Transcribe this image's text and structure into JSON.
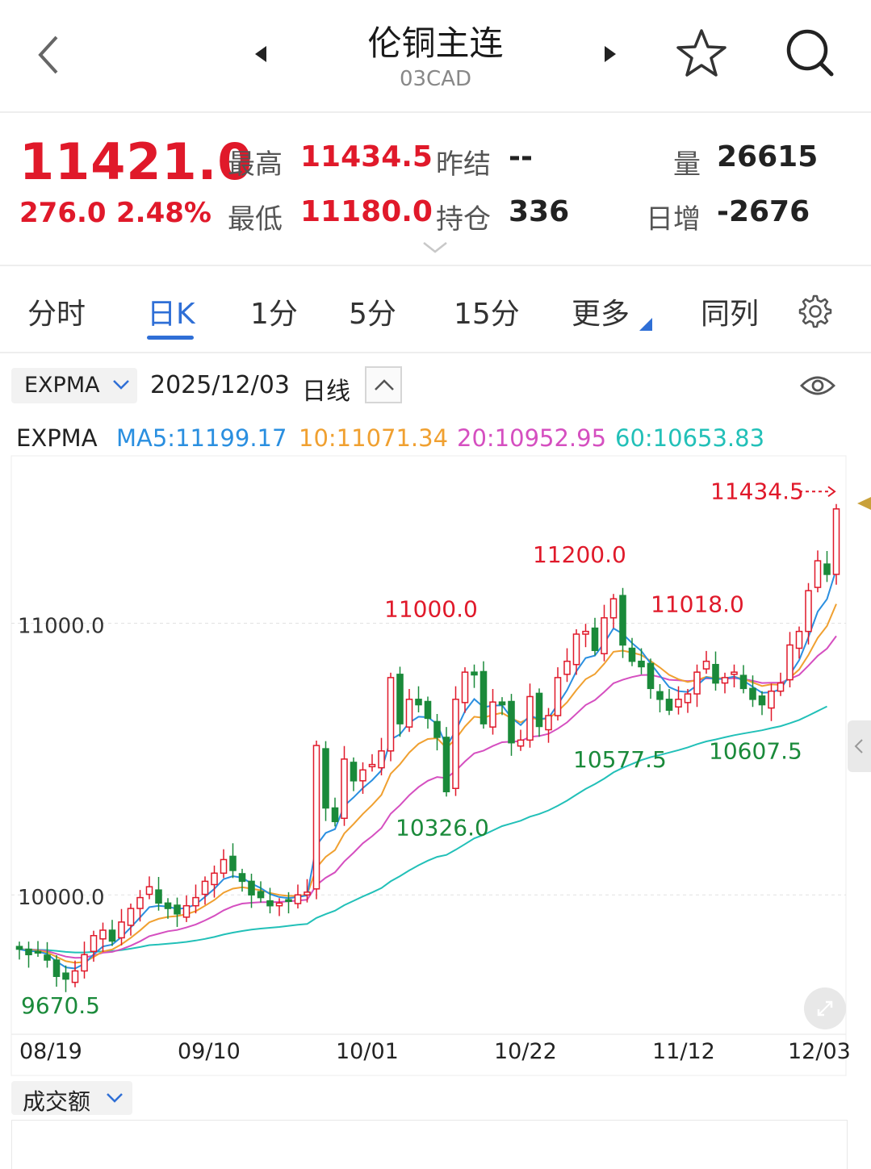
{
  "header": {
    "title": "伦铜主连",
    "code": "03CAD"
  },
  "quote": {
    "price": "11421.0",
    "change": "276.0",
    "change_pct": "2.48%",
    "high_label": "最高",
    "high": "11434.5",
    "low_label": "最低",
    "low": "11180.0",
    "prev_settle_label": "昨结",
    "prev_settle": "--",
    "open_interest_label": "持仓",
    "open_interest": "336",
    "volume_label": "量",
    "volume": "26615",
    "daily_change_label": "日增",
    "daily_change": "-2676"
  },
  "tabs": [
    {
      "label": "分时",
      "active": false
    },
    {
      "label": "日K",
      "active": true
    },
    {
      "label": "1分",
      "active": false
    },
    {
      "label": "5分",
      "active": false
    },
    {
      "label": "15分",
      "active": false
    },
    {
      "label": "更多",
      "active": false
    },
    {
      "label": "同列",
      "active": false
    }
  ],
  "indicator_bar": {
    "indicator": "EXPMA",
    "date": "2025/12/03",
    "period": "日线"
  },
  "legend": {
    "name": "EXPMA",
    "ma5": "MA5:11199.17",
    "ma10": "10:11071.34",
    "ma20": "20:10952.95",
    "ma60": "60:10653.83"
  },
  "volume_indicator": "成交额",
  "icons": [
    "back-arrow-icon",
    "prev-triangle-icon",
    "next-triangle-icon",
    "star-icon",
    "search-icon",
    "chevron-down-icon",
    "chevron-up-icon",
    "eye-icon",
    "gear-icon",
    "expand-icon"
  ],
  "colors": {
    "up": "#e0192a",
    "down": "#1a8a3a",
    "ma5": "#2a8fe0",
    "ma10": "#f0a030",
    "ma20": "#d54fc0",
    "ma60": "#22c0b8",
    "accent": "#2f6fd6"
  },
  "chart_data": {
    "type": "candlestick",
    "y_ticks": [
      "11000.0",
      "10000.0"
    ],
    "y_tick_values": [
      11000,
      10000
    ],
    "ylim": [
      9570,
      11560
    ],
    "x_labels": [
      "08/19",
      "09/10",
      "10/01",
      "10/22",
      "11/12",
      "12/03"
    ],
    "annotations": [
      {
        "text": "11434.5",
        "value": 11434.5,
        "kind": "high"
      },
      {
        "text": "11200.0",
        "value": 11200,
        "kind": "high"
      },
      {
        "text": "11000.0",
        "value": 11000,
        "kind": "high"
      },
      {
        "text": "11018.0",
        "value": 11018,
        "kind": "high"
      },
      {
        "text": "10577.5",
        "value": 10577.5,
        "kind": "low"
      },
      {
        "text": "10607.5",
        "value": 10607.5,
        "kind": "low"
      },
      {
        "text": "10326.0",
        "value": 10326,
        "kind": "low"
      },
      {
        "text": "9670.5",
        "value": 9670.5,
        "kind": "low"
      }
    ],
    "closes": [
      9800,
      9780,
      9790,
      9760,
      9700,
      9690,
      9720,
      9780,
      9850,
      9870,
      9830,
      9900,
      9950,
      9990,
      10030,
      9970,
      9950,
      9930,
      9960,
      9990,
      10050,
      10080,
      10130,
      10090,
      10050,
      10000,
      9990,
      9960,
      9970,
      9980,
      10000,
      10010,
      10550,
      10320,
      10270,
      10500,
      10420,
      10460,
      10480,
      10530,
      10800,
      10630,
      10720,
      10700,
      10650,
      10580,
      10380,
      10720,
      10820,
      10810,
      10630,
      10710,
      10700,
      10560,
      10570,
      10730,
      10620,
      10660,
      10800,
      10860,
      10960,
      10970,
      10900,
      11020,
      11090,
      10920,
      10860,
      10840,
      10760,
      10720,
      10680,
      10720,
      10740,
      10820,
      10860,
      10780,
      10800,
      10820,
      10760,
      10720,
      10700,
      10750,
      10780,
      10920,
      10970,
      11120,
      11230,
      11180,
      11421
    ],
    "ema5": [
      9800,
      9793,
      9792,
      9782,
      9755,
      9733,
      9729,
      9746,
      9781,
      9810,
      9817,
      9845,
      9880,
      9917,
      9955,
      9960,
      9957,
      9948,
      9952,
      9965,
      9993,
      10022,
      10058,
      10069,
      10063,
      10042,
      10025,
      10003,
      9992,
      9988,
      9992,
      9998,
      10182,
      10228,
      10242,
      10328,
      10359,
      10393,
      10422,
      10458,
      10572,
      10591,
      10634,
      10656,
      10654,
      10629,
      10546,
      10604,
      10676,
      10721,
      10691,
      10697,
      10698,
      10652,
      10625,
      10660,
      10647,
      10651,
      10701,
      10754,
      10823,
      10872,
      10881,
      10927,
      10981,
      10961,
      10927,
      10898,
      10852,
      10808,
      10765,
      10750,
      10747,
      10771,
      10801,
      10794,
      10796,
      10804,
      10789,
      10766,
      10744,
      10746,
      10757,
      10811,
      10864,
      10949,
      11043,
      11089,
      11199
    ],
    "ema10": [
      9800,
      9796,
      9795,
      9788,
      9772,
      9756,
      9750,
      9753,
      9771,
      9792,
      9799,
      9818,
      9842,
      9869,
      9899,
      9912,
      9919,
      9922,
      9929,
      9940,
      9960,
      9981,
      10008,
      10023,
      10028,
      10023,
      10017,
      10007,
      10000,
      9996,
      9997,
      10000,
      10100,
      10140,
      10165,
      10226,
      10261,
      10298,
      10331,
      10368,
      10446,
      10481,
      10524,
      10556,
      10574,
      10577,
      10541,
      10574,
      10620,
      10656,
      10652,
      10663,
      10670,
      10650,
      10635,
      10652,
      10646,
      10649,
      10676,
      10709,
      10754,
      10794,
      10813,
      10851,
      10895,
      10899,
      10892,
      10883,
      10861,
      10837,
      10810,
      10794,
      10784,
      10791,
      10803,
      10798,
      10798,
      10803,
      10795,
      10782,
      10769,
      10775,
      10773,
      10799,
      10830,
      10883,
      10946,
      10990,
      11071
    ],
    "ema20": [
      9800,
      9798,
      9797,
      9793,
      9783,
      9773,
      9768,
      9769,
      9777,
      9787,
      9790,
      9800,
      9813,
      9829,
      9848,
      9857,
      9866,
      9871,
      9880,
      9891,
      9906,
      9923,
      9943,
      9958,
      9968,
      9971,
      9973,
      9973,
      9974,
      9976,
      9979,
      9982,
      10036,
      10063,
      10083,
      10123,
      10155,
      10190,
      10216,
      10246,
      10299,
      10330,
      10367,
      10397,
      10420,
      10434,
      10430,
      10457,
      10491,
      10521,
      10531,
      10548,
      10562,
      10564,
      10566,
      10582,
      10585,
      10593,
      10612,
      10635,
      10667,
      10699,
      10717,
      10747,
      10779,
      10792,
      10802,
      10809,
      10810,
      10802,
      10792,
      10790,
      10787,
      10790,
      10797,
      10796,
      10796,
      10798,
      10795,
      10788,
      10780,
      10781,
      10781,
      10795,
      10810,
      10844,
      10880,
      10907,
      10953
    ],
    "ema60": [
      9800,
      9799,
      9798,
      9797,
      9794,
      9790,
      9788,
      9788,
      9790,
      9792,
      9793,
      9797,
      9802,
      9808,
      9815,
      9817,
      9820,
      9823,
      9827,
      9832,
      9838,
      9845,
      9854,
      9861,
      9867,
      9872,
      9876,
      9879,
      9882,
      9886,
      9890,
      9893,
      9915,
      9929,
      9942,
      9962,
      9978,
      9994,
      10009,
      10025,
      10050,
      10069,
      10090,
      10109,
      10126,
      10140,
      10147,
      10166,
      10187,
      10208,
      10221,
      10237,
      10253,
      10263,
      10273,
      10288,
      10298,
      10311,
      10328,
      10347,
      10369,
      10390,
      10408,
      10428,
      10451,
      10468,
      10482,
      10496,
      10507,
      10515,
      10524,
      10533,
      10543,
      10555,
      10565,
      10572,
      10580,
      10588,
      10594,
      10600,
      10606,
      10614,
      10621,
      10632,
      10644,
      10660,
      10677,
      10694,
      10654
    ]
  }
}
